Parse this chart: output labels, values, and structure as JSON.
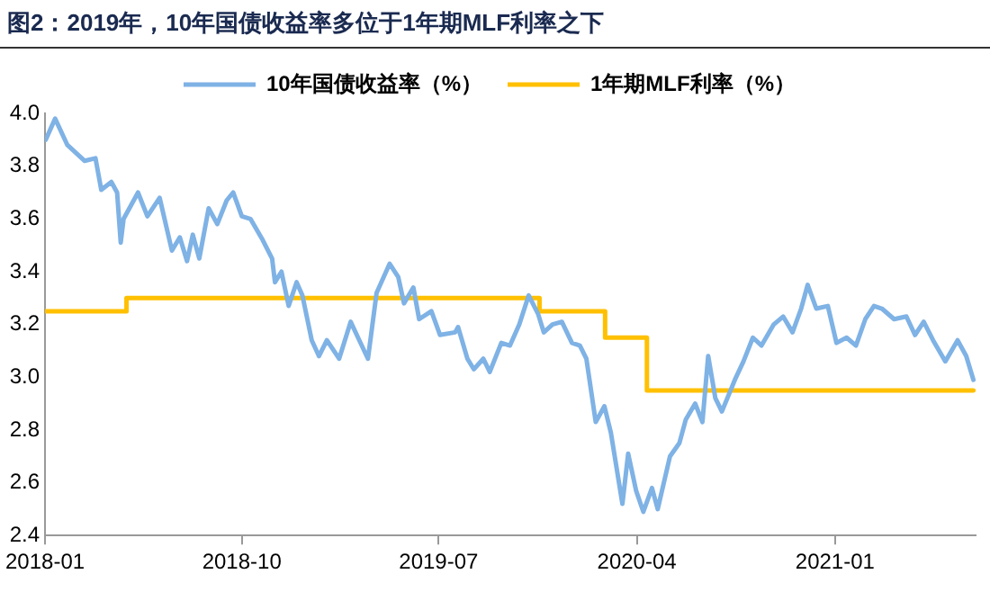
{
  "chart_data": {
    "type": "line",
    "title": "图2：2019年，10年国债收益率多位于1年期MLF利率之下",
    "xlim": [
      "2018-01-01",
      "2021-07-15"
    ],
    "xticks": [
      "2018-01",
      "2018-10",
      "2019-07",
      "2020-04",
      "2021-01"
    ],
    "ylim": [
      2.4,
      4.0
    ],
    "yticks": [
      {
        "value": 2.4,
        "label": "2.4"
      },
      {
        "value": 2.6,
        "label": "2.6"
      },
      {
        "value": 2.8,
        "label": "2.8"
      },
      {
        "value": 3.0,
        "label": "3.0"
      },
      {
        "value": 3.2,
        "label": "3.2"
      },
      {
        "value": 3.4,
        "label": "3.4"
      },
      {
        "value": 3.6,
        "label": "3.6"
      },
      {
        "value": 3.8,
        "label": "3.8"
      },
      {
        "value": 4.0,
        "label": "4.0"
      }
    ],
    "grid": false,
    "legend": "top",
    "series": [
      {
        "name": "10年国债收益率（%）",
        "color": "#7fb2e5",
        "type": "line",
        "x": [
          "2018-01-02",
          "2018-01-15",
          "2018-02-01",
          "2018-02-25",
          "2018-03-12",
          "2018-03-20",
          "2018-04-03",
          "2018-04-11",
          "2018-04-16",
          "2018-04-20",
          "2018-05-10",
          "2018-05-23",
          "2018-06-09",
          "2018-06-26",
          "2018-07-07",
          "2018-07-17",
          "2018-07-25",
          "2018-08-03",
          "2018-08-16",
          "2018-08-28",
          "2018-09-10",
          "2018-09-19",
          "2018-10-01",
          "2018-10-13",
          "2018-10-30",
          "2018-11-12",
          "2018-11-16",
          "2018-11-25",
          "2018-12-05",
          "2018-12-16",
          "2018-12-24",
          "2019-01-06",
          "2019-01-16",
          "2019-01-27",
          "2019-02-13",
          "2019-03-01",
          "2019-03-13",
          "2019-03-25",
          "2019-04-06",
          "2019-04-24",
          "2019-05-06",
          "2019-05-14",
          "2019-05-27",
          "2019-06-04",
          "2019-06-21",
          "2019-07-03",
          "2019-07-24",
          "2019-07-28",
          "2019-08-10",
          "2019-08-19",
          "2019-09-01",
          "2019-09-10",
          "2019-09-26",
          "2019-10-08",
          "2019-10-21",
          "2019-11-03",
          "2019-11-16",
          "2019-11-24",
          "2019-12-06",
          "2019-12-19",
          "2020-01-02",
          "2020-01-13",
          "2020-01-22",
          "2020-02-04",
          "2020-02-16",
          "2020-02-25",
          "2020-03-12",
          "2020-03-20",
          "2020-03-31",
          "2020-04-10",
          "2020-04-22",
          "2020-04-30",
          "2020-05-17",
          "2020-05-30",
          "2020-06-08",
          "2020-06-21",
          "2020-07-01",
          "2020-07-09",
          "2020-07-19",
          "2020-07-28",
          "2020-08-15",
          "2020-08-27",
          "2020-09-09",
          "2020-09-21",
          "2020-10-08",
          "2020-10-21",
          "2020-11-03",
          "2020-11-15",
          "2020-11-24",
          "2020-12-06",
          "2020-12-22",
          "2021-01-03",
          "2021-01-17",
          "2021-01-30",
          "2021-02-12",
          "2021-02-24",
          "2021-03-07",
          "2021-03-24",
          "2021-04-10",
          "2021-04-22",
          "2021-05-04",
          "2021-05-17",
          "2021-06-03",
          "2021-06-20",
          "2021-07-02",
          "2021-07-12"
        ],
        "values": [
          3.9,
          3.98,
          3.88,
          3.82,
          3.83,
          3.71,
          3.74,
          3.7,
          3.51,
          3.6,
          3.7,
          3.61,
          3.68,
          3.48,
          3.53,
          3.44,
          3.54,
          3.45,
          3.64,
          3.58,
          3.67,
          3.7,
          3.61,
          3.6,
          3.52,
          3.45,
          3.36,
          3.4,
          3.27,
          3.36,
          3.31,
          3.14,
          3.08,
          3.14,
          3.07,
          3.21,
          3.14,
          3.07,
          3.32,
          3.43,
          3.38,
          3.28,
          3.34,
          3.22,
          3.25,
          3.16,
          3.17,
          3.19,
          3.07,
          3.03,
          3.07,
          3.02,
          3.13,
          3.12,
          3.2,
          3.31,
          3.24,
          3.17,
          3.2,
          3.21,
          3.13,
          3.12,
          3.07,
          2.83,
          2.89,
          2.79,
          2.52,
          2.71,
          2.57,
          2.49,
          2.58,
          2.5,
          2.7,
          2.75,
          2.84,
          2.9,
          2.83,
          3.08,
          2.92,
          2.87,
          2.99,
          3.06,
          3.15,
          3.12,
          3.2,
          3.23,
          3.17,
          3.26,
          3.35,
          3.26,
          3.27,
          3.13,
          3.15,
          3.12,
          3.22,
          3.27,
          3.26,
          3.22,
          3.23,
          3.16,
          3.21,
          3.14,
          3.06,
          3.14,
          3.08,
          2.99
        ]
      },
      {
        "name": "1年期MLF利率（%）",
        "color": "#ffc000",
        "type": "step",
        "x": [
          "2018-01-02",
          "2018-04-24",
          "2019-11-18",
          "2020-02-17",
          "2020-04-15",
          "2021-07-12"
        ],
        "values": [
          3.25,
          3.3,
          3.25,
          3.15,
          2.95,
          2.95
        ]
      }
    ]
  }
}
